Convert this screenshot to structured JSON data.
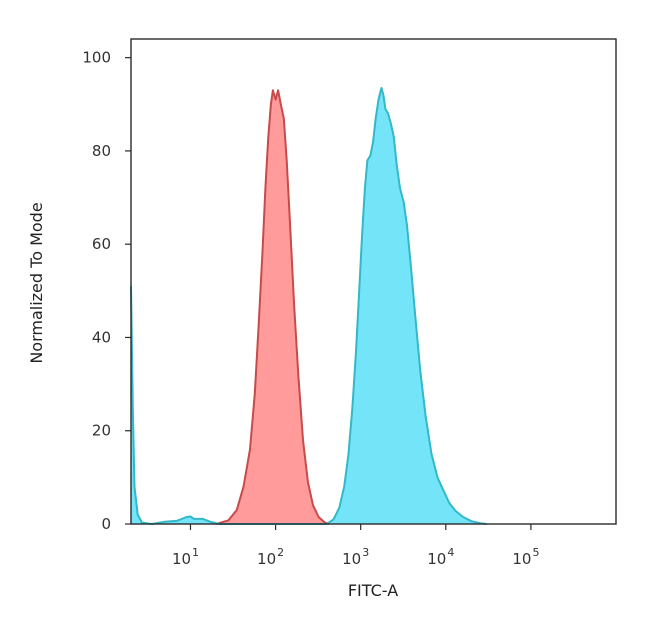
{
  "chart_data": {
    "type": "area",
    "title": "",
    "xlabel": "FITC-A",
    "ylabel": "Normalized To Mode",
    "x_scale": "log",
    "xlim": [
      2,
      1000000
    ],
    "ylim": [
      0,
      104
    ],
    "x_ticks": [
      {
        "value": 10,
        "base": "10",
        "exp": "1"
      },
      {
        "value": 100,
        "base": "10",
        "exp": "2"
      },
      {
        "value": 1000,
        "base": "10",
        "exp": "3"
      },
      {
        "value": 10000,
        "base": "10",
        "exp": "4"
      },
      {
        "value": 100000,
        "base": "10",
        "exp": "5"
      }
    ],
    "y_ticks": [
      0,
      20,
      40,
      60,
      80,
      100
    ],
    "grid": false,
    "legend": "none",
    "series": [
      {
        "color": "#FF8A8A",
        "stroke": "#C84A4A",
        "points": [
          [
            20,
            0
          ],
          [
            28,
            0.8
          ],
          [
            35,
            3
          ],
          [
            42,
            8
          ],
          [
            50,
            16
          ],
          [
            57,
            28
          ],
          [
            63,
            42
          ],
          [
            70,
            58
          ],
          [
            76,
            72
          ],
          [
            82,
            83
          ],
          [
            88,
            90
          ],
          [
            93,
            93
          ],
          [
            100,
            91
          ],
          [
            107,
            93
          ],
          [
            115,
            90
          ],
          [
            125,
            87
          ],
          [
            135,
            78
          ],
          [
            150,
            62
          ],
          [
            165,
            47
          ],
          [
            185,
            32
          ],
          [
            210,
            18
          ],
          [
            240,
            9
          ],
          [
            275,
            4
          ],
          [
            320,
            1.5
          ],
          [
            380,
            0.3
          ],
          [
            430,
            0
          ]
        ]
      },
      {
        "color": "#5CE0F7",
        "stroke": "#32B8C8",
        "points": [
          [
            2,
            51
          ],
          [
            2.1,
            25
          ],
          [
            2.2,
            8
          ],
          [
            2.4,
            2
          ],
          [
            2.7,
            0.3
          ],
          [
            3.5,
            0
          ],
          [
            5,
            0.5
          ],
          [
            7,
            0.7
          ],
          [
            9,
            1.5
          ],
          [
            10,
            1.6
          ],
          [
            11,
            1.1
          ],
          [
            14,
            1.1
          ],
          [
            17,
            0.5
          ],
          [
            22,
            0
          ],
          [
            400,
            0
          ],
          [
            480,
            1
          ],
          [
            560,
            3.5
          ],
          [
            640,
            8
          ],
          [
            720,
            15
          ],
          [
            800,
            25
          ],
          [
            880,
            37
          ],
          [
            960,
            50
          ],
          [
            1040,
            62
          ],
          [
            1120,
            72
          ],
          [
            1200,
            78
          ],
          [
            1300,
            79
          ],
          [
            1400,
            82
          ],
          [
            1500,
            87
          ],
          [
            1620,
            91
          ],
          [
            1750,
            93.5
          ],
          [
            1850,
            92
          ],
          [
            1950,
            89
          ],
          [
            2100,
            88
          ],
          [
            2250,
            86
          ],
          [
            2450,
            83
          ],
          [
            2650,
            77
          ],
          [
            2900,
            72
          ],
          [
            3200,
            69
          ],
          [
            3500,
            64
          ],
          [
            3900,
            55
          ],
          [
            4400,
            44
          ],
          [
            5000,
            33
          ],
          [
            5800,
            23
          ],
          [
            6800,
            15
          ],
          [
            8000,
            10
          ],
          [
            9500,
            7
          ],
          [
            11000,
            4.5
          ],
          [
            13000,
            2.8
          ],
          [
            16000,
            1.5
          ],
          [
            20000,
            0.6
          ],
          [
            25000,
            0.2
          ],
          [
            30000,
            0
          ]
        ]
      }
    ]
  }
}
